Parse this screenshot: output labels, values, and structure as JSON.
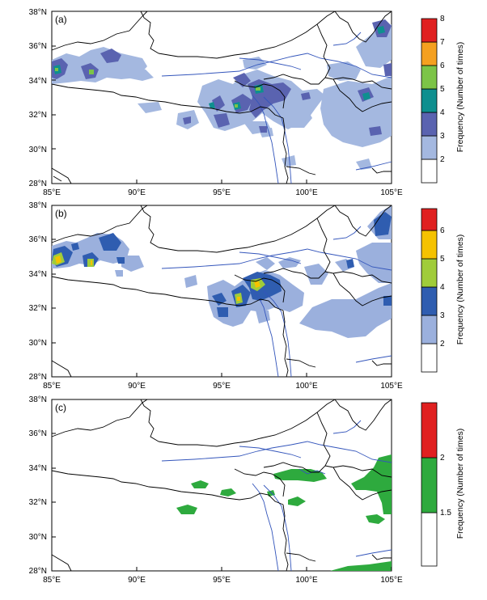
{
  "panels": [
    {
      "label": "(a)",
      "legend": {
        "title": "Frequency (Number of times)",
        "levels": [
          "2",
          "3",
          "4",
          "5",
          "6",
          "7",
          "8"
        ]
      }
    },
    {
      "label": "(b)",
      "legend": {
        "title": "Frequency (Number of times)",
        "levels": [
          "2",
          "3",
          "4",
          "5",
          "6"
        ]
      }
    },
    {
      "label": "(c)",
      "legend": {
        "title": "Frequency (Number of times)",
        "levels": [
          "1.5",
          "2"
        ]
      }
    }
  ],
  "axes": {
    "x_ticks": [
      "85°E",
      "90°E",
      "95°E",
      "100°E",
      "105°E"
    ],
    "y_ticks": [
      "28°N",
      "30°N",
      "32°N",
      "34°N",
      "36°N",
      "38°N"
    ]
  },
  "colors": {
    "panel_a_legend": [
      "#ffffff",
      "#a4b8e0",
      "#5a63b0",
      "#0f8f8f",
      "#7cc447",
      "#f4a020",
      "#e02020"
    ],
    "panel_b_legend": [
      "#ffffff",
      "#9bb0dd",
      "#2f5db0",
      "#a0cc3a",
      "#f5c200",
      "#e02020"
    ],
    "panel_c_legend": [
      "#ffffff",
      "#2eaa3e",
      "#e02020"
    ],
    "boundary": "#000000",
    "river": "#3355bb"
  }
}
